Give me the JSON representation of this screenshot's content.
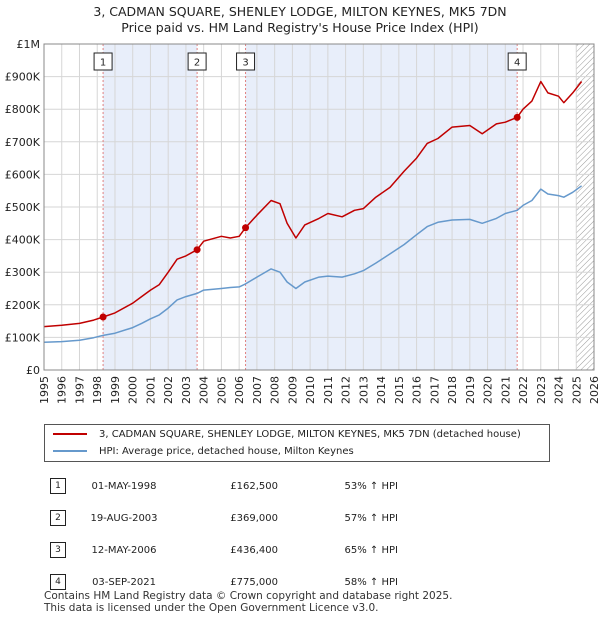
{
  "title_line1": "3, CADMAN SQUARE, SHENLEY LODGE, MILTON KEYNES, MK5 7DN",
  "title_line2": "Price paid vs. HM Land Registry's House Price Index (HPI)",
  "colors": {
    "property": "#c00000",
    "hpi": "#6699cc",
    "shade": "#e8eefa",
    "grid": "#d6d6d6",
    "marker_line": "#e08080"
  },
  "chart_data": {
    "type": "line",
    "xlim": [
      1995,
      2026
    ],
    "ylim": [
      0,
      1000000
    ],
    "y_ticks": [
      {
        "v": 0,
        "label": "£0"
      },
      {
        "v": 100000,
        "label": "£100K"
      },
      {
        "v": 200000,
        "label": "£200K"
      },
      {
        "v": 300000,
        "label": "£300K"
      },
      {
        "v": 400000,
        "label": "£400K"
      },
      {
        "v": 500000,
        "label": "£500K"
      },
      {
        "v": 600000,
        "label": "£600K"
      },
      {
        "v": 700000,
        "label": "£700K"
      },
      {
        "v": 800000,
        "label": "£800K"
      },
      {
        "v": 900000,
        "label": "£900K"
      },
      {
        "v": 1000000,
        "label": "£1M"
      }
    ],
    "x_ticks": [
      "1995",
      "1996",
      "1997",
      "1998",
      "1999",
      "2000",
      "2001",
      "2002",
      "2003",
      "2004",
      "2005",
      "2006",
      "2007",
      "2008",
      "2009",
      "2010",
      "2011",
      "2012",
      "2013",
      "2014",
      "2015",
      "2016",
      "2017",
      "2018",
      "2019",
      "2020",
      "2021",
      "2022",
      "2023",
      "2024",
      "2025",
      "2026"
    ],
    "shaded_ranges": [
      [
        1998.33,
        2003.63
      ],
      [
        2006.36,
        2021.67
      ]
    ],
    "hatch_from": 2025.0,
    "series": [
      {
        "name": "3, CADMAN SQUARE, SHENLEY LODGE, MILTON KEYNES, MK5 7DN (detached house)",
        "color": "#c00000",
        "x": [
          1995,
          1996,
          1997,
          1997.8,
          1998.33,
          1999,
          2000,
          2000.5,
          2001,
          2001.5,
          2002,
          2002.5,
          2003,
          2003.63,
          2004,
          2005,
          2005.5,
          2006,
          2006.36,
          2007,
          2007.8,
          2008.3,
          2008.7,
          2009.2,
          2009.7,
          2010.5,
          2011,
          2011.8,
          2012.5,
          2013,
          2013.7,
          2014.5,
          2015.3,
          2016,
          2016.6,
          2017.2,
          2018,
          2019,
          2019.7,
          2020.5,
          2021,
          2021.67,
          2022,
          2022.5,
          2023,
          2023.4,
          2024,
          2024.3,
          2024.8,
          2025.3
        ],
        "y": [
          133000,
          137000,
          143000,
          153000,
          162500,
          175000,
          205000,
          225000,
          245000,
          262000,
          300000,
          340000,
          350000,
          369000,
          395000,
          410000,
          405000,
          410000,
          436400,
          475000,
          520000,
          510000,
          450000,
          405000,
          445000,
          465000,
          480000,
          470000,
          490000,
          495000,
          530000,
          560000,
          610000,
          650000,
          695000,
          710000,
          745000,
          750000,
          725000,
          755000,
          760000,
          775000,
          800000,
          825000,
          885000,
          850000,
          840000,
          820000,
          850000,
          885000
        ]
      },
      {
        "name": "HPI: Average price, detached house, Milton Keynes",
        "color": "#6699cc",
        "x": [
          1995,
          1996,
          1997,
          1997.8,
          1998.33,
          1999,
          2000,
          2000.5,
          2001,
          2001.5,
          2002,
          2002.5,
          2003,
          2003.63,
          2004,
          2005,
          2005.5,
          2006,
          2006.36,
          2007,
          2007.8,
          2008.3,
          2008.7,
          2009.2,
          2009.7,
          2010.5,
          2011,
          2011.8,
          2012.5,
          2013,
          2013.7,
          2014.5,
          2015.3,
          2016,
          2016.6,
          2017.2,
          2018,
          2019,
          2019.7,
          2020.5,
          2021,
          2021.67,
          2022,
          2022.5,
          2023,
          2023.4,
          2024,
          2024.3,
          2024.8,
          2025.3
        ],
        "y": [
          85000,
          87000,
          91000,
          99000,
          106000,
          113000,
          130000,
          143000,
          157000,
          169000,
          190000,
          215000,
          225000,
          235000,
          245000,
          250000,
          253000,
          255000,
          264000,
          285000,
          310000,
          300000,
          270000,
          250000,
          270000,
          285000,
          288000,
          285000,
          295000,
          305000,
          328000,
          356000,
          385000,
          415000,
          440000,
          453000,
          460000,
          462000,
          450000,
          465000,
          480000,
          490000,
          505000,
          520000,
          555000,
          540000,
          535000,
          530000,
          545000,
          565000
        ]
      }
    ],
    "sales": [
      {
        "n": "1",
        "x": 1998.33,
        "y": 162500
      },
      {
        "n": "2",
        "x": 2003.63,
        "y": 369000
      },
      {
        "n": "3",
        "x": 2006.36,
        "y": 436400
      },
      {
        "n": "4",
        "x": 2021.67,
        "y": 775000
      }
    ]
  },
  "legend": {
    "property": "3, CADMAN SQUARE, SHENLEY LODGE, MILTON KEYNES, MK5 7DN (detached house)",
    "hpi": "HPI: Average price, detached house, Milton Keynes"
  },
  "table": [
    {
      "num": "1",
      "date": "01-MAY-1998",
      "price": "£162,500",
      "hpi": "53% ↑ HPI"
    },
    {
      "num": "2",
      "date": "19-AUG-2003",
      "price": "£369,000",
      "hpi": "57% ↑ HPI"
    },
    {
      "num": "3",
      "date": "12-MAY-2006",
      "price": "£436,400",
      "hpi": "65% ↑ HPI"
    },
    {
      "num": "4",
      "date": "03-SEP-2021",
      "price": "£775,000",
      "hpi": "58% ↑ HPI"
    }
  ],
  "footer_line1": "Contains HM Land Registry data © Crown copyright and database right 2025.",
  "footer_line2": "This data is licensed under the Open Government Licence v3.0."
}
